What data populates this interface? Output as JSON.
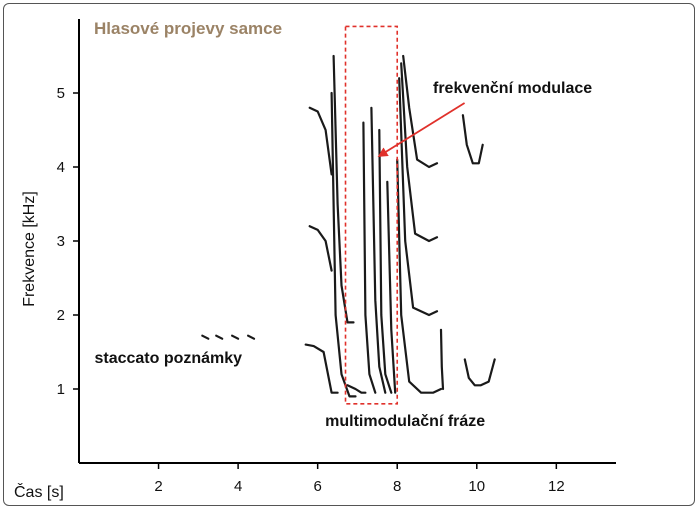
{
  "chart_data": {
    "type": "spectrogram",
    "title": "Hlasové projevy samce",
    "xlabel": "Čas [s]",
    "ylabel": "Frekvence [kHz]",
    "xlim": [
      0,
      13.5
    ],
    "ylim": [
      0,
      6
    ],
    "x_ticks": [
      2,
      4,
      6,
      8,
      10,
      12
    ],
    "y_ticks": [
      1,
      2,
      3,
      4,
      5
    ],
    "grid": false,
    "highlight_box": {
      "x0": 6.7,
      "x1": 8.0,
      "y0": 0.8,
      "y1": 5.9,
      "color": "#e0312b"
    },
    "annotations": [
      {
        "id": "staccato",
        "text": "staccato poznámky",
        "x": 4.1,
        "y": 1.35
      },
      {
        "id": "multimod",
        "text": "multimodulační fráze",
        "x": 8.2,
        "y": 0.5
      },
      {
        "id": "freqmod",
        "text": "frekvenční modulace",
        "x": 10.9,
        "y": 5.0,
        "arrow_to": [
          7.55,
          4.15
        ],
        "arrow_color": "#e0312b"
      }
    ],
    "series": [
      {
        "t": [
          3.1,
          3.25
        ],
        "f": [
          1.72,
          1.68
        ]
      },
      {
        "t": [
          3.45,
          3.6
        ],
        "f": [
          1.72,
          1.68
        ]
      },
      {
        "t": [
          3.85,
          4.0
        ],
        "f": [
          1.72,
          1.68
        ]
      },
      {
        "t": [
          4.25,
          4.4
        ],
        "f": [
          1.72,
          1.68
        ]
      },
      {
        "t": [
          5.7,
          5.9,
          6.15,
          6.35,
          6.5
        ],
        "f": [
          1.6,
          1.58,
          1.5,
          0.95,
          0.95
        ]
      },
      {
        "t": [
          5.8,
          6.0,
          6.2,
          6.35
        ],
        "f": [
          3.2,
          3.15,
          3.0,
          2.6
        ]
      },
      {
        "t": [
          5.8,
          6.0,
          6.2,
          6.35
        ],
        "f": [
          4.8,
          4.75,
          4.5,
          3.9
        ]
      },
      {
        "t": [
          6.35,
          6.45,
          6.6,
          6.8,
          6.95
        ],
        "f": [
          5.0,
          2.0,
          1.2,
          0.9,
          0.9
        ]
      },
      {
        "t": [
          6.4,
          6.5,
          6.6,
          6.75,
          6.9
        ],
        "f": [
          5.5,
          3.5,
          2.4,
          1.9,
          1.9
        ]
      },
      {
        "t": [
          6.75,
          6.95,
          7.1,
          7.2
        ],
        "f": [
          1.05,
          1.0,
          0.95,
          0.95
        ]
      },
      {
        "t": [
          7.15,
          7.2,
          7.3,
          7.45
        ],
        "f": [
          4.6,
          2.0,
          1.2,
          0.95
        ]
      },
      {
        "t": [
          7.35,
          7.45,
          7.55,
          7.7
        ],
        "f": [
          4.8,
          2.2,
          1.3,
          0.95
        ]
      },
      {
        "t": [
          7.55,
          7.6,
          7.7,
          7.85
        ],
        "f": [
          4.5,
          2.0,
          1.2,
          0.95
        ]
      },
      {
        "t": [
          7.75,
          7.85,
          7.95
        ],
        "f": [
          3.8,
          1.8,
          0.95
        ]
      },
      {
        "t": [
          8.0,
          8.1,
          8.3,
          8.6,
          8.9,
          9.1
        ],
        "f": [
          4.1,
          2.0,
          1.1,
          0.95,
          0.95,
          1.0
        ]
      },
      {
        "t": [
          8.05,
          8.2,
          8.4,
          8.8,
          9.0
        ],
        "f": [
          5.2,
          3.0,
          2.1,
          2.0,
          2.05
        ]
      },
      {
        "t": [
          8.1,
          8.25,
          8.45,
          8.8,
          9.0
        ],
        "f": [
          5.4,
          4.0,
          3.1,
          3.0,
          3.05
        ]
      },
      {
        "t": [
          8.15,
          8.3,
          8.5,
          8.8,
          9.0
        ],
        "f": [
          5.5,
          4.8,
          4.1,
          4.0,
          4.05
        ]
      },
      {
        "t": [
          9.1,
          9.12,
          9.15
        ],
        "f": [
          1.8,
          1.3,
          1.0
        ]
      },
      {
        "t": [
          9.7,
          9.8,
          9.95,
          10.1,
          10.3,
          10.45
        ],
        "f": [
          1.4,
          1.15,
          1.05,
          1.05,
          1.1,
          1.4
        ]
      },
      {
        "t": [
          9.65,
          9.75,
          9.9,
          10.05,
          10.15
        ],
        "f": [
          4.7,
          4.3,
          4.05,
          4.05,
          4.3
        ]
      }
    ]
  }
}
